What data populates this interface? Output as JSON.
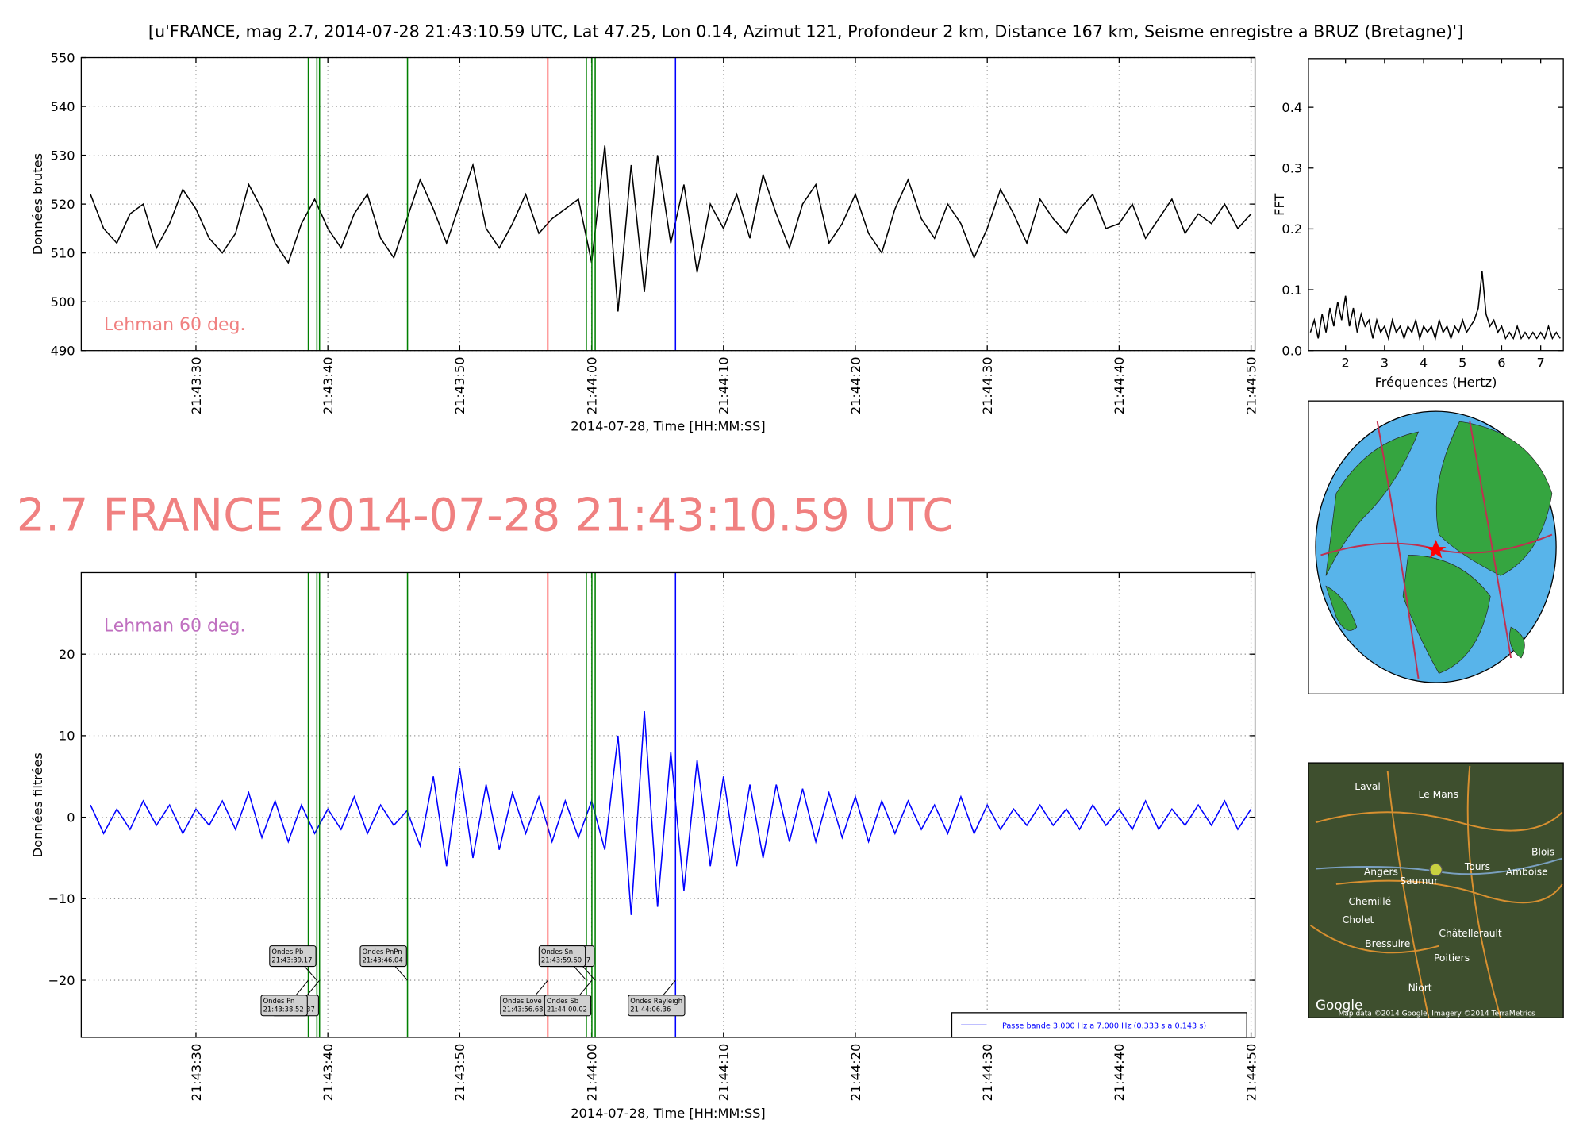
{
  "chart_data": [
    {
      "type": "line",
      "title": "[u'FRANCE, mag 2.7, 2014-07-28 21:43:10.59 UTC, Lat 47.25, Lon 0.14, Azimut 121, Profondeur 2 km, Distance   167 km, Seisme enregistre a BRUZ (Bretagne)']",
      "xlabel": "2014-07-28, Time [HH:MM:SS]",
      "ylabel": "Données brutes",
      "annotation": "Lehman 60 deg.",
      "annotation_color": "#f08080",
      "grid": true,
      "xlim": [
        "21:43:21.3",
        "21:44:50.3"
      ],
      "xticks": [
        "21:43:30",
        "21:43:40",
        "21:43:50",
        "21:44:00",
        "21:44:10",
        "21:44:20",
        "21:44:30",
        "21:44:40",
        "21:44:50"
      ],
      "ylim": [
        490,
        550
      ],
      "yticks": [
        490,
        500,
        510,
        520,
        530,
        540,
        550
      ],
      "x": [
        "21:43:22",
        "21:43:23",
        "21:43:24",
        "21:43:25",
        "21:43:26",
        "21:43:27",
        "21:43:28",
        "21:43:29",
        "21:43:30",
        "21:43:31",
        "21:43:32",
        "21:43:33",
        "21:43:34",
        "21:43:35",
        "21:43:36",
        "21:43:37",
        "21:43:38",
        "21:43:39",
        "21:43:40",
        "21:43:41",
        "21:43:42",
        "21:43:43",
        "21:43:44",
        "21:43:45",
        "21:43:46",
        "21:43:47",
        "21:43:48",
        "21:43:49",
        "21:43:50",
        "21:43:51",
        "21:43:52",
        "21:43:53",
        "21:43:54",
        "21:43:55",
        "21:43:56",
        "21:43:57",
        "21:43:58",
        "21:43:59",
        "21:44:00",
        "21:44:01",
        "21:44:02",
        "21:44:03",
        "21:44:04",
        "21:44:05",
        "21:44:06",
        "21:44:07",
        "21:44:08",
        "21:44:09",
        "21:44:10",
        "21:44:11",
        "21:44:12",
        "21:44:13",
        "21:44:14",
        "21:44:15",
        "21:44:16",
        "21:44:17",
        "21:44:18",
        "21:44:19",
        "21:44:20",
        "21:44:21",
        "21:44:22",
        "21:44:23",
        "21:44:24",
        "21:44:25",
        "21:44:26",
        "21:44:27",
        "21:44:28",
        "21:44:29",
        "21:44:30",
        "21:44:31",
        "21:44:32",
        "21:44:33",
        "21:44:34",
        "21:44:35",
        "21:44:36",
        "21:44:37",
        "21:44:38",
        "21:44:39",
        "21:44:40",
        "21:44:41",
        "21:44:42",
        "21:44:43",
        "21:44:44",
        "21:44:45",
        "21:44:46",
        "21:44:47",
        "21:44:48",
        "21:44:49",
        "21:44:50"
      ],
      "series": [
        {
          "color": "#000000",
          "values": [
            522,
            515,
            512,
            518,
            520,
            511,
            516,
            523,
            519,
            513,
            510,
            514,
            524,
            519,
            512,
            508,
            516,
            521,
            515,
            511,
            518,
            522,
            513,
            509,
            517,
            525,
            519,
            512,
            520,
            528,
            515,
            511,
            516,
            522,
            514,
            517,
            519,
            521,
            508,
            532,
            498,
            528,
            502,
            530,
            512,
            524,
            506,
            520,
            515,
            522,
            513,
            526,
            518,
            511,
            520,
            524,
            512,
            516,
            522,
            514,
            510,
            519,
            525,
            517,
            513,
            520,
            516,
            509,
            515,
            523,
            518,
            512,
            521,
            517,
            514,
            519,
            522,
            515,
            516,
            520,
            513,
            517,
            521,
            514,
            518,
            516,
            520,
            515,
            518
          ]
        }
      ]
    },
    {
      "type": "line",
      "title": "2.7 FRANCE 2014-07-28 21:43:10.59 UTC",
      "xlabel": "2014-07-28, Time [HH:MM:SS]",
      "ylabel": "Données filtrées",
      "annotation": "Lehman 60 deg.",
      "annotation_color": "#c070c0",
      "grid": true,
      "legend": "lower right",
      "xlim": [
        "21:43:21.3",
        "21:44:50.3"
      ],
      "xticks": [
        "21:43:30",
        "21:43:40",
        "21:43:50",
        "21:44:00",
        "21:44:10",
        "21:44:20",
        "21:44:30",
        "21:44:40",
        "21:44:50"
      ],
      "ylim": [
        -27,
        30
      ],
      "yticks": [
        {
          "value": -20,
          "label": "−20"
        },
        {
          "value": -10,
          "label": "−10"
        },
        0,
        10,
        20
      ],
      "x": [
        "21:43:22",
        "21:43:23",
        "21:43:24",
        "21:43:25",
        "21:43:26",
        "21:43:27",
        "21:43:28",
        "21:43:29",
        "21:43:30",
        "21:43:31",
        "21:43:32",
        "21:43:33",
        "21:43:34",
        "21:43:35",
        "21:43:36",
        "21:43:37",
        "21:43:38",
        "21:43:39",
        "21:43:40",
        "21:43:41",
        "21:43:42",
        "21:43:43",
        "21:43:44",
        "21:43:45",
        "21:43:46",
        "21:43:47",
        "21:43:48",
        "21:43:49",
        "21:43:50",
        "21:43:51",
        "21:43:52",
        "21:43:53",
        "21:43:54",
        "21:43:55",
        "21:43:56",
        "21:43:57",
        "21:43:58",
        "21:43:59",
        "21:44:00",
        "21:44:01",
        "21:44:02",
        "21:44:03",
        "21:44:04",
        "21:44:05",
        "21:44:06",
        "21:44:07",
        "21:44:08",
        "21:44:09",
        "21:44:10",
        "21:44:11",
        "21:44:12",
        "21:44:13",
        "21:44:14",
        "21:44:15",
        "21:44:16",
        "21:44:17",
        "21:44:18",
        "21:44:19",
        "21:44:20",
        "21:44:21",
        "21:44:22",
        "21:44:23",
        "21:44:24",
        "21:44:25",
        "21:44:26",
        "21:44:27",
        "21:44:28",
        "21:44:29",
        "21:44:30",
        "21:44:31",
        "21:44:32",
        "21:44:33",
        "21:44:34",
        "21:44:35",
        "21:44:36",
        "21:44:37",
        "21:44:38",
        "21:44:39",
        "21:44:40",
        "21:44:41",
        "21:44:42",
        "21:44:43",
        "21:44:44",
        "21:44:45",
        "21:44:46",
        "21:44:47",
        "21:44:48",
        "21:44:49",
        "21:44:50"
      ],
      "series": [
        {
          "name": "Passe bande 3.000 Hz a 7.000 Hz (0.333 s a 0.143 s)",
          "color": "#0000ff",
          "values": [
            1.5,
            -2,
            1,
            -1.5,
            2,
            -1,
            1.5,
            -2,
            1,
            -1,
            2,
            -1.5,
            3,
            -2.5,
            2,
            -3,
            1.5,
            -2,
            1,
            -1.5,
            2.5,
            -2,
            1.5,
            -1,
            0.8,
            -3.5,
            5,
            -6,
            6,
            -5,
            4,
            -4,
            3,
            -2,
            2.5,
            -3,
            2,
            -2.5,
            2,
            -4,
            10,
            -12,
            13,
            -11,
            8,
            -9,
            7,
            -6,
            5,
            -6,
            4,
            -5,
            4,
            -3,
            3.5,
            -3,
            3,
            -2.5,
            2.5,
            -3,
            2,
            -2,
            2,
            -1.5,
            1.5,
            -2,
            2.5,
            -2,
            1.5,
            -1.5,
            1,
            -1,
            1.5,
            -1,
            1,
            -1.5,
            1.5,
            -1,
            1,
            -1.5,
            2,
            -1.5,
            1,
            -1,
            1.5,
            -1,
            2,
            -1.5,
            1
          ]
        }
      ],
      "phases": [
        {
          "name": "Ondes Pn",
          "x": "21:43:38.52",
          "color": "#008000"
        },
        {
          "name": "Ondes Pb",
          "x": "21:43:39.17",
          "color": "#008000"
        },
        {
          "name": null,
          "x": "21:43:39.37",
          "color": "#008000"
        },
        {
          "name": "Ondes PnPn",
          "x": "21:43:46.04",
          "color": "#008000"
        },
        {
          "name": "Ondes Love",
          "x": "21:43:56.68",
          "color": "#ff0000"
        },
        {
          "name": "Ondes Sn",
          "x": "21:43:59.60",
          "color": "#008000"
        },
        {
          "name": "Ondes Sb",
          "x": "21:44:00.02",
          "color": "#008000"
        },
        {
          "name": null,
          "x": "21:44:00.27",
          "color": "#008000"
        },
        {
          "name": "Ondes Rayleigh",
          "x": "21:44:06.36",
          "color": "#0000ff"
        }
      ]
    },
    {
      "type": "line",
      "xlabel": "Fréquences (Hertz)",
      "ylabel": "FFT",
      "grid": false,
      "xlim": [
        1.05,
        7.58
      ],
      "xticks": [
        2,
        3,
        4,
        5,
        6,
        7
      ],
      "ylim": [
        0,
        0.48
      ],
      "yticks": [
        {
          "value": 0,
          "label": "0.0"
        },
        0.1,
        0.2,
        0.3,
        0.4
      ],
      "x": [
        1.1,
        1.2,
        1.3,
        1.4,
        1.5,
        1.6,
        1.7,
        1.8,
        1.9,
        2.0,
        2.1,
        2.2,
        2.3,
        2.4,
        2.5,
        2.6,
        2.7,
        2.8,
        2.9,
        3.0,
        3.1,
        3.2,
        3.3,
        3.4,
        3.5,
        3.6,
        3.7,
        3.8,
        3.9,
        4.0,
        4.1,
        4.2,
        4.3,
        4.4,
        4.5,
        4.6,
        4.7,
        4.8,
        4.9,
        5.0,
        5.1,
        5.2,
        5.3,
        5.4,
        5.5,
        5.6,
        5.7,
        5.8,
        5.9,
        6.0,
        6.1,
        6.2,
        6.3,
        6.4,
        6.5,
        6.6,
        6.7,
        6.8,
        6.9,
        7.0,
        7.1,
        7.2,
        7.3,
        7.4,
        7.5
      ],
      "series": [
        {
          "color": "#000000",
          "values": [
            0.03,
            0.05,
            0.02,
            0.06,
            0.03,
            0.07,
            0.04,
            0.08,
            0.05,
            0.09,
            0.04,
            0.07,
            0.03,
            0.06,
            0.04,
            0.05,
            0.02,
            0.05,
            0.03,
            0.04,
            0.02,
            0.05,
            0.03,
            0.04,
            0.02,
            0.04,
            0.03,
            0.05,
            0.02,
            0.04,
            0.03,
            0.04,
            0.02,
            0.05,
            0.03,
            0.04,
            0.02,
            0.04,
            0.03,
            0.05,
            0.03,
            0.04,
            0.05,
            0.07,
            0.13,
            0.06,
            0.04,
            0.05,
            0.03,
            0.04,
            0.02,
            0.03,
            0.02,
            0.04,
            0.02,
            0.03,
            0.02,
            0.03,
            0.02,
            0.03,
            0.02,
            0.04,
            0.02,
            0.03,
            0.02
          ]
        }
      ]
    }
  ],
  "map": {
    "labels": [
      "Laval",
      "Le Mans",
      "Angers",
      "Saumur",
      "Tours",
      "Amboise",
      "Blois",
      "Cholet",
      "Chemillé",
      "Bressuire",
      "Châtellerault",
      "Poitiers",
      "Niort",
      "Google",
      "Map data ©2014 Google, Imagery ©2014 TerraMetrics"
    ]
  }
}
